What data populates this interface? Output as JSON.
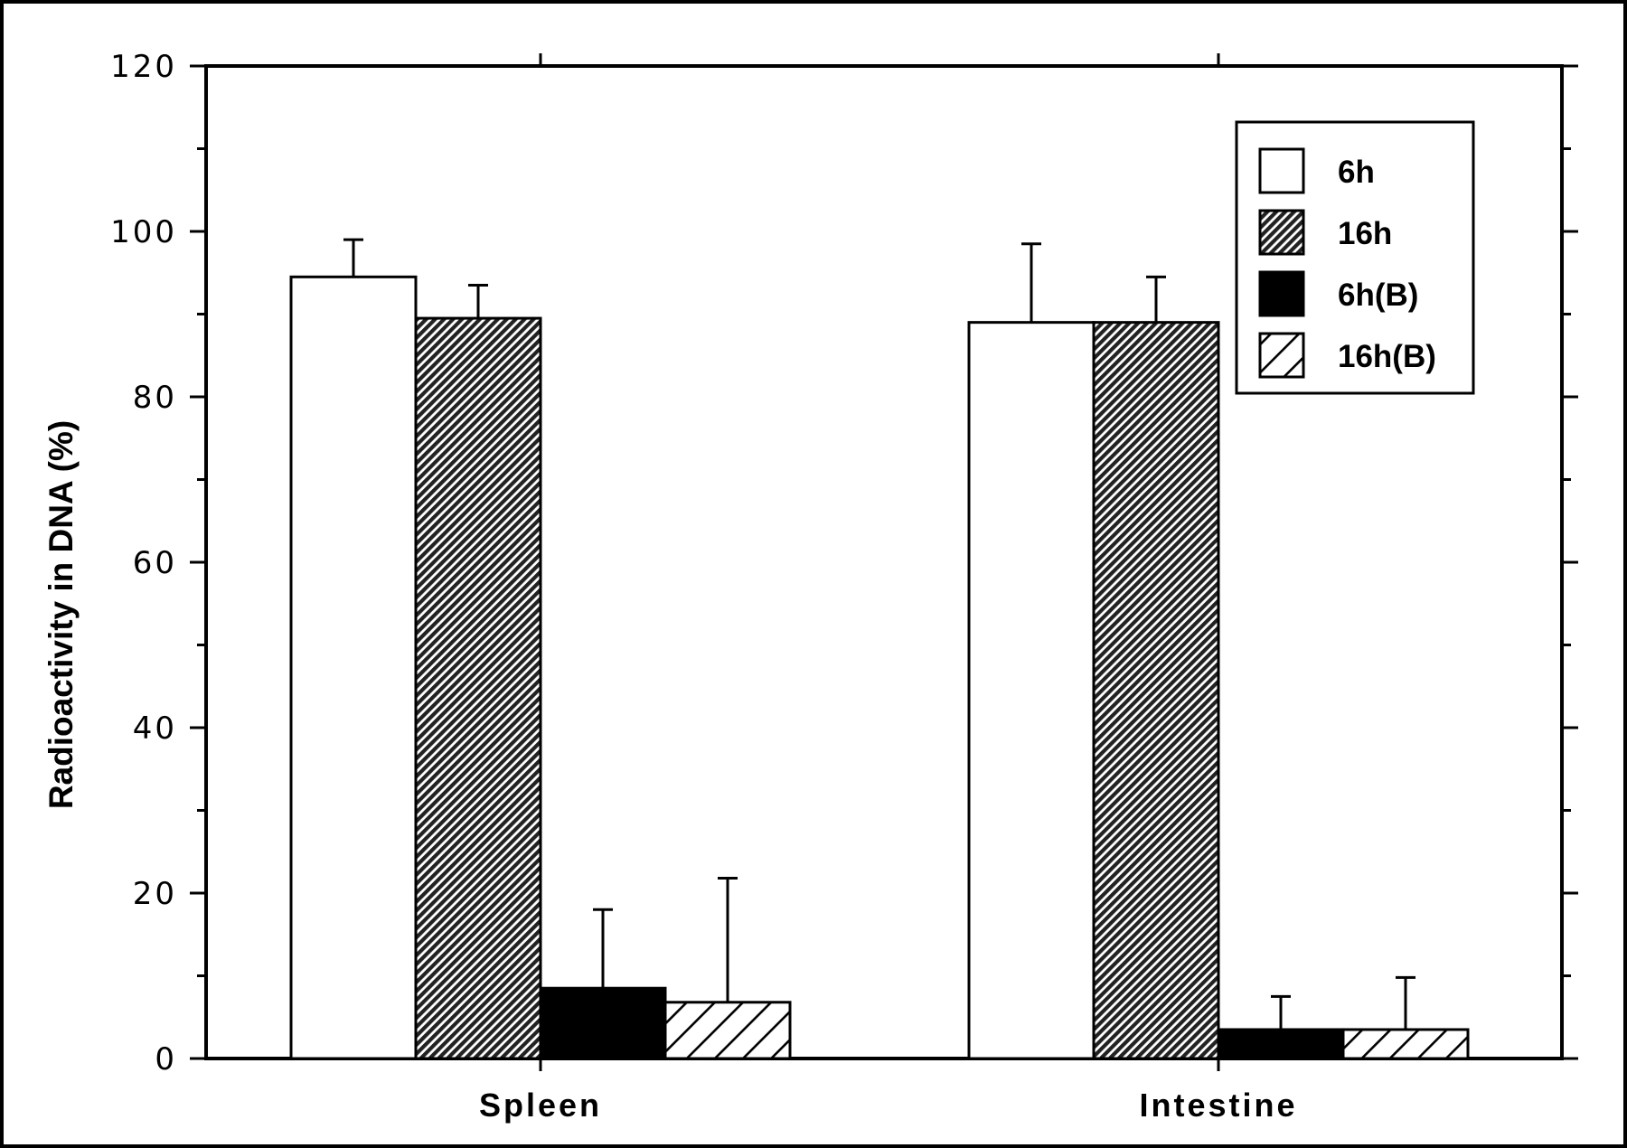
{
  "chart_data": {
    "type": "bar",
    "title": "",
    "xlabel": "",
    "ylabel": "Radioactivity in DNA (%)",
    "ylim": [
      0,
      120
    ],
    "yticks": [
      "0",
      "20",
      "40",
      "60",
      "80",
      "100",
      "120"
    ],
    "grid": false,
    "legend_position": "top-right",
    "categories": [
      "Spleen",
      "Intestine"
    ],
    "series": [
      {
        "name": "6h",
        "values": [
          94.5,
          89.0
        ],
        "errors": [
          4.5,
          9.5
        ],
        "fill": "white"
      },
      {
        "name": "16h",
        "values": [
          89.5,
          89.0
        ],
        "errors": [
          4.0,
          5.5
        ],
        "fill": "dense-hatch"
      },
      {
        "name": "6h(B)",
        "values": [
          8.5,
          3.5
        ],
        "errors": [
          9.5,
          4.0
        ],
        "fill": "black"
      },
      {
        "name": "16h(B)",
        "values": [
          6.8,
          3.5
        ],
        "errors": [
          15.0,
          6.3
        ],
        "fill": "sparse-hatch"
      }
    ]
  },
  "colors": {
    "ink": "#000000",
    "paper": "#ffffff"
  }
}
